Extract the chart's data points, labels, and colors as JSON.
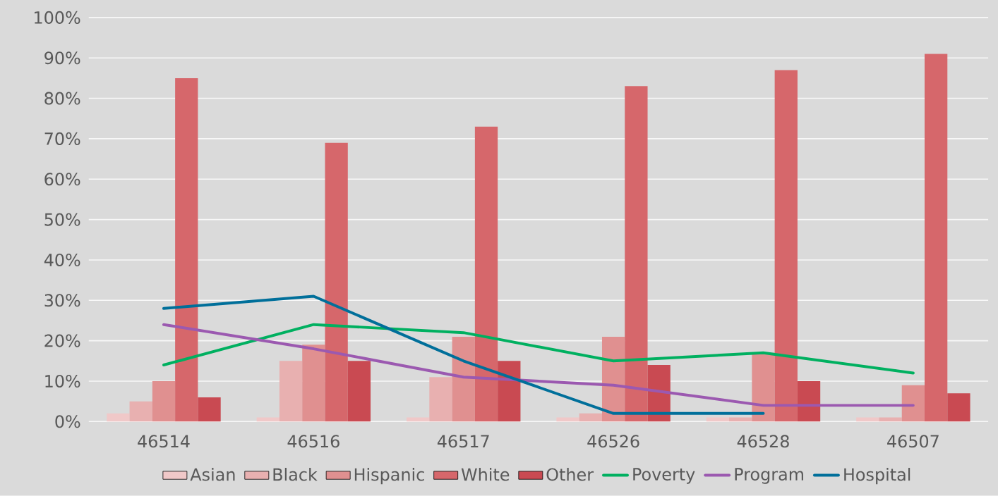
{
  "chart_data": {
    "type": "bar",
    "categories": [
      "46514",
      "46516",
      "46517",
      "46526",
      "46528",
      "46507"
    ],
    "series": [
      {
        "name": "Asian",
        "color": "#f0c8c8",
        "values": [
          2,
          1,
          1,
          1,
          1,
          1
        ]
      },
      {
        "name": "Black",
        "color": "#e8b0b0",
        "values": [
          5,
          15,
          11,
          2,
          1,
          1
        ]
      },
      {
        "name": "Hispanic",
        "color": "#e09090",
        "values": [
          10,
          19,
          21,
          21,
          17,
          9
        ]
      },
      {
        "name": "White",
        "color": "#d6676b",
        "values": [
          85,
          69,
          73,
          83,
          87,
          91
        ]
      },
      {
        "name": "Other",
        "color": "#c94a52",
        "values": [
          6,
          15,
          15,
          14,
          10,
          7
        ]
      },
      {
        "name": "Poverty",
        "type": "line",
        "color": "#00b060",
        "values": [
          14,
          24,
          22,
          15,
          17,
          12
        ]
      },
      {
        "name": "Program",
        "type": "line",
        "color": "#9b59b0",
        "values": [
          24,
          18,
          11,
          9,
          4,
          4
        ]
      },
      {
        "name": "Hospital",
        "type": "line",
        "color": "#006f9a",
        "values": [
          28,
          31,
          15,
          2,
          2,
          null
        ]
      }
    ],
    "ylim": [
      0,
      100
    ],
    "yticks": [
      {
        "value": 0,
        "label": "0%"
      },
      {
        "value": 10,
        "label": "10%"
      },
      {
        "value": 20,
        "label": "20%"
      },
      {
        "value": 30,
        "label": "30%"
      },
      {
        "value": 40,
        "label": "40%"
      },
      {
        "value": 50,
        "label": "50%"
      },
      {
        "value": 60,
        "label": "60%"
      },
      {
        "value": 70,
        "label": "70%"
      },
      {
        "value": 80,
        "label": "80%"
      },
      {
        "value": 90,
        "label": "90%"
      },
      {
        "value": 100,
        "label": "100%"
      }
    ],
    "grid": "y",
    "legend": "bottom",
    "marker": "none",
    "line_style": "solid"
  }
}
